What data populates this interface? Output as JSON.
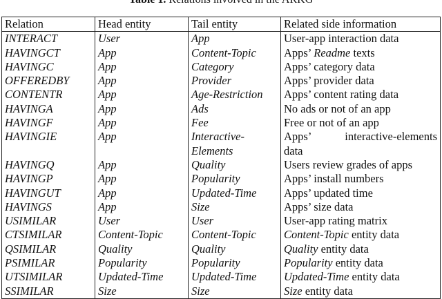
{
  "caption": {
    "label": "Table 1.",
    "text": " Relations involved in the ARKG"
  },
  "headers": [
    "Relation",
    "Head entity",
    "Tail entity",
    "Related side information"
  ],
  "rows": [
    {
      "relation": "INTERACT",
      "head": "User",
      "tail": [
        "App"
      ],
      "side": [
        [
          {
            "t": "User-app interaction data",
            "i": false
          }
        ]
      ]
    },
    {
      "relation": "HAVINGCT",
      "head": "App",
      "tail": [
        "Content-Topic"
      ],
      "side": [
        [
          {
            "t": "Apps’ ",
            "i": false
          },
          {
            "t": "Readme",
            "i": true
          },
          {
            "t": " texts",
            "i": false
          }
        ]
      ]
    },
    {
      "relation": "HAVINGC",
      "head": "App",
      "tail": [
        "Category"
      ],
      "side": [
        [
          {
            "t": "Apps’ category data",
            "i": false
          }
        ]
      ]
    },
    {
      "relation": "OFFEREDBY",
      "head": "App",
      "tail": [
        "Provider"
      ],
      "side": [
        [
          {
            "t": "Apps’ provider data",
            "i": false
          }
        ]
      ]
    },
    {
      "relation": "CONTENTR",
      "head": "App",
      "tail": [
        "Age-Restriction"
      ],
      "side": [
        [
          {
            "t": "Apps’ content rating data",
            "i": false
          }
        ]
      ]
    },
    {
      "relation": "HAVINGA",
      "head": "App",
      "tail": [
        "Ads"
      ],
      "side": [
        [
          {
            "t": "No ads or not of an app",
            "i": false
          }
        ]
      ]
    },
    {
      "relation": "HAVINGF",
      "head": "App",
      "tail": [
        "Fee"
      ],
      "side": [
        [
          {
            "t": "Free or not of an app",
            "i": false
          }
        ]
      ]
    },
    {
      "relation": "HAVINGIE",
      "head": "App",
      "tail": [
        "Interactive-",
        "Elements"
      ],
      "side": [
        [
          {
            "t": "Apps’",
            "i": false
          },
          {
            "t": "interactive-elements",
            "i": false
          }
        ],
        [
          {
            "t": "data",
            "i": false
          }
        ]
      ]
    },
    {
      "relation": "HAVINGQ",
      "head": "App",
      "tail": [
        "Quality"
      ],
      "side": [
        [
          {
            "t": "Users review grades of apps",
            "i": false
          }
        ]
      ]
    },
    {
      "relation": "HAVINGP",
      "head": "App",
      "tail": [
        "Popularity"
      ],
      "side": [
        [
          {
            "t": "Apps’ install numbers",
            "i": false
          }
        ]
      ]
    },
    {
      "relation": "HAVINGUT",
      "head": "App",
      "tail": [
        "Updated-Time"
      ],
      "side": [
        [
          {
            "t": "Apps’ updated time",
            "i": false
          }
        ]
      ]
    },
    {
      "relation": "HAVINGS",
      "head": "App",
      "tail": [
        "Size"
      ],
      "side": [
        [
          {
            "t": "Apps’ size data",
            "i": false
          }
        ]
      ]
    },
    {
      "relation": "USIMILAR",
      "head": "User",
      "tail": [
        "User"
      ],
      "side": [
        [
          {
            "t": "User-app rating matrix",
            "i": false
          }
        ]
      ]
    },
    {
      "relation": "CTSIMILAR",
      "head": "Content-Topic",
      "tail": [
        "Content-Topic"
      ],
      "side": [
        [
          {
            "t": "Content-Topic",
            "i": true
          },
          {
            "t": " entity data",
            "i": false
          }
        ]
      ]
    },
    {
      "relation": "QSIMILAR",
      "head": "Quality",
      "tail": [
        "Quality"
      ],
      "side": [
        [
          {
            "t": "Quality",
            "i": true
          },
          {
            "t": " entity data",
            "i": false
          }
        ]
      ]
    },
    {
      "relation": "PSIMILAR",
      "head": "Popularity",
      "tail": [
        "Popularity"
      ],
      "side": [
        [
          {
            "t": "Popularity",
            "i": true
          },
          {
            "t": " entity data",
            "i": false
          }
        ]
      ]
    },
    {
      "relation": "UTSIMILAR",
      "head": "Updated-Time",
      "tail": [
        "Updated-Time"
      ],
      "side": [
        [
          {
            "t": "Updated-Time",
            "i": true
          },
          {
            "t": " entity data",
            "i": false
          }
        ]
      ]
    },
    {
      "relation": "SSIMILAR",
      "head": "Size",
      "tail": [
        "Size"
      ],
      "side": [
        [
          {
            "t": "Size",
            "i": true
          },
          {
            "t": " entity data",
            "i": false
          }
        ]
      ]
    }
  ]
}
